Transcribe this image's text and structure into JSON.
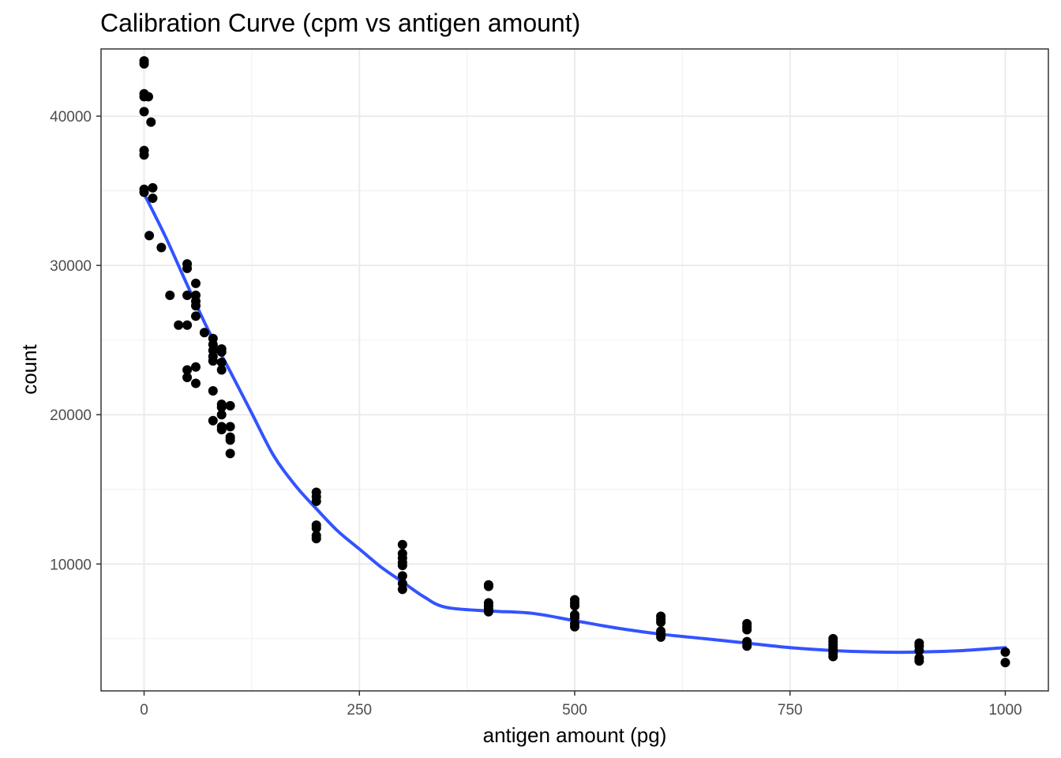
{
  "chart_data": {
    "type": "scatter",
    "title": "Calibration Curve (cpm vs antigen amount)",
    "xlabel": "antigen amount (pg)",
    "ylabel": "count",
    "xlim": [
      -50,
      1050
    ],
    "ylim": [
      1500,
      44500
    ],
    "x_ticks": [
      0,
      250,
      500,
      750,
      1000
    ],
    "y_ticks": [
      10000,
      20000,
      30000,
      40000
    ],
    "x_tick_labels": [
      "0",
      "250",
      "500",
      "750",
      "1000"
    ],
    "y_tick_labels": [
      "10000",
      "20000",
      "30000",
      "40000"
    ],
    "x_minor_ticks": [
      125,
      375,
      625,
      875
    ],
    "y_minor_ticks": [
      5000,
      15000,
      25000,
      35000
    ],
    "grid": true,
    "legend": "none",
    "colors": {
      "points": "#000000",
      "fit_line": "#3353ff"
    },
    "points": [
      [
        0,
        43700
      ],
      [
        0,
        43500
      ],
      [
        0,
        41500
      ],
      [
        0,
        41300
      ],
      [
        0,
        40300
      ],
      [
        0,
        37700
      ],
      [
        0,
        37400
      ],
      [
        0,
        35100
      ],
      [
        0,
        34900
      ],
      [
        5,
        41300
      ],
      [
        6,
        32000
      ],
      [
        8,
        39600
      ],
      [
        10,
        35200
      ],
      [
        10,
        34500
      ],
      [
        20,
        31200
      ],
      [
        30,
        28000
      ],
      [
        40,
        26000
      ],
      [
        50,
        30100
      ],
      [
        50,
        29800
      ],
      [
        50,
        28000
      ],
      [
        50,
        26000
      ],
      [
        50,
        23000
      ],
      [
        50,
        22500
      ],
      [
        60,
        28800
      ],
      [
        60,
        28000
      ],
      [
        60,
        27600
      ],
      [
        60,
        27300
      ],
      [
        60,
        26600
      ],
      [
        60,
        23200
      ],
      [
        60,
        22100
      ],
      [
        70,
        25500
      ],
      [
        80,
        25100
      ],
      [
        80,
        24700
      ],
      [
        80,
        24300
      ],
      [
        80,
        23900
      ],
      [
        80,
        23600
      ],
      [
        80,
        21600
      ],
      [
        80,
        19600
      ],
      [
        90,
        24400
      ],
      [
        90,
        24200
      ],
      [
        90,
        23500
      ],
      [
        90,
        23000
      ],
      [
        90,
        20700
      ],
      [
        90,
        20500
      ],
      [
        90,
        20000
      ],
      [
        90,
        19200
      ],
      [
        90,
        19000
      ],
      [
        100,
        20600
      ],
      [
        100,
        19200
      ],
      [
        100,
        18500
      ],
      [
        100,
        18300
      ],
      [
        100,
        17400
      ],
      [
        200,
        14800
      ],
      [
        200,
        14500
      ],
      [
        200,
        14200
      ],
      [
        200,
        12600
      ],
      [
        200,
        12400
      ],
      [
        200,
        11900
      ],
      [
        200,
        11700
      ],
      [
        300,
        11300
      ],
      [
        300,
        10700
      ],
      [
        300,
        10400
      ],
      [
        300,
        10100
      ],
      [
        300,
        9900
      ],
      [
        300,
        9200
      ],
      [
        300,
        8700
      ],
      [
        300,
        8300
      ],
      [
        400,
        8600
      ],
      [
        400,
        8500
      ],
      [
        400,
        7400
      ],
      [
        400,
        7200
      ],
      [
        400,
        7000
      ],
      [
        400,
        6800
      ],
      [
        500,
        7600
      ],
      [
        500,
        7400
      ],
      [
        500,
        7200
      ],
      [
        500,
        6600
      ],
      [
        500,
        6400
      ],
      [
        500,
        6000
      ],
      [
        500,
        5800
      ],
      [
        600,
        6500
      ],
      [
        600,
        6300
      ],
      [
        600,
        6100
      ],
      [
        600,
        5500
      ],
      [
        600,
        5300
      ],
      [
        600,
        5100
      ],
      [
        700,
        6000
      ],
      [
        700,
        5800
      ],
      [
        700,
        5600
      ],
      [
        700,
        4800
      ],
      [
        700,
        4500
      ],
      [
        800,
        5000
      ],
      [
        800,
        4800
      ],
      [
        800,
        4600
      ],
      [
        800,
        4400
      ],
      [
        800,
        4200
      ],
      [
        800,
        4000
      ],
      [
        800,
        3800
      ],
      [
        900,
        4700
      ],
      [
        900,
        4500
      ],
      [
        900,
        4200
      ],
      [
        900,
        3700
      ],
      [
        900,
        3500
      ],
      [
        1000,
        4100
      ],
      [
        1000,
        3400
      ]
    ],
    "fit_line": {
      "x": [
        0,
        25,
        50,
        75,
        100,
        125,
        150,
        175,
        200,
        225,
        250,
        275,
        300,
        325,
        350,
        400,
        450,
        500,
        550,
        600,
        650,
        700,
        750,
        800,
        850,
        900,
        950,
        1000
      ],
      "y": [
        34800,
        31900,
        28700,
        25600,
        22900,
        20100,
        17300,
        15300,
        13700,
        12200,
        11000,
        9800,
        8800,
        7800,
        7100,
        6850,
        6700,
        6200,
        5700,
        5300,
        5000,
        4700,
        4400,
        4200,
        4100,
        4100,
        4200,
        4400
      ]
    }
  }
}
